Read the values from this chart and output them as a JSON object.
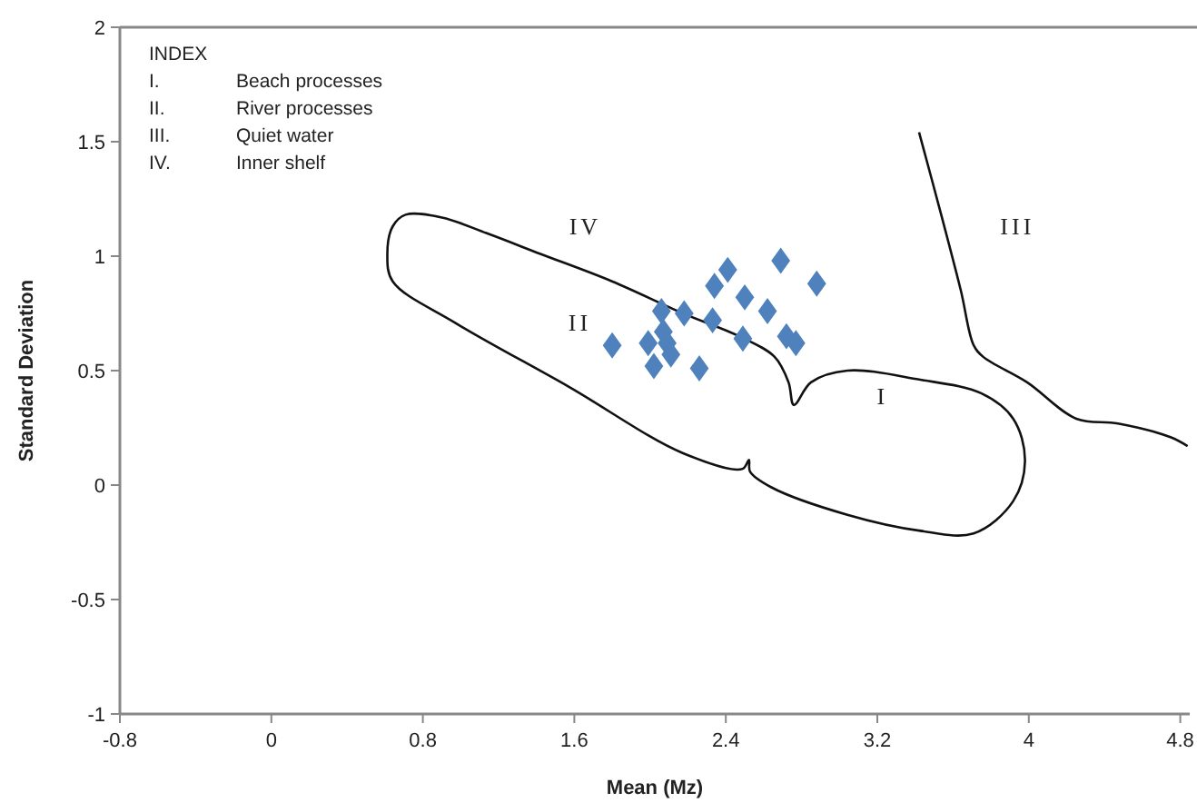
{
  "chart_data": {
    "type": "scatter",
    "xlabel": "Mean (Mz)",
    "ylabel": "Standard Deviation",
    "xlim": [
      -0.8,
      4.85
    ],
    "ylim": [
      -1,
      2
    ],
    "xticks": [
      -0.8,
      0,
      0.8,
      1.6,
      2.4,
      3.2,
      4,
      4.8
    ],
    "yticks": [
      -1,
      -0.5,
      0,
      0.5,
      1,
      1.5,
      2
    ],
    "grid": false,
    "marker": "diamond",
    "series": [
      {
        "color": "#4f81bd",
        "x": [
          1.8,
          2.06,
          2.18,
          1.99,
          2.07,
          2.09,
          2.11,
          2.02,
          2.26,
          2.33,
          2.34,
          2.41,
          2.5,
          2.62,
          2.49,
          2.69,
          2.88,
          2.72,
          2.77
        ],
        "values": [
          0.61,
          0.76,
          0.75,
          0.62,
          0.67,
          0.62,
          0.57,
          0.52,
          0.51,
          0.72,
          0.87,
          0.94,
          0.82,
          0.76,
          0.64,
          0.98,
          0.88,
          0.65,
          0.62
        ]
      }
    ],
    "annotations": [
      "INDEX",
      "I.\tBeach processes",
      "II.\tRiver processes",
      "III.\tQuiet water",
      "IV.\tInner shelf",
      "IV",
      "II",
      "III",
      "I"
    ]
  }
}
